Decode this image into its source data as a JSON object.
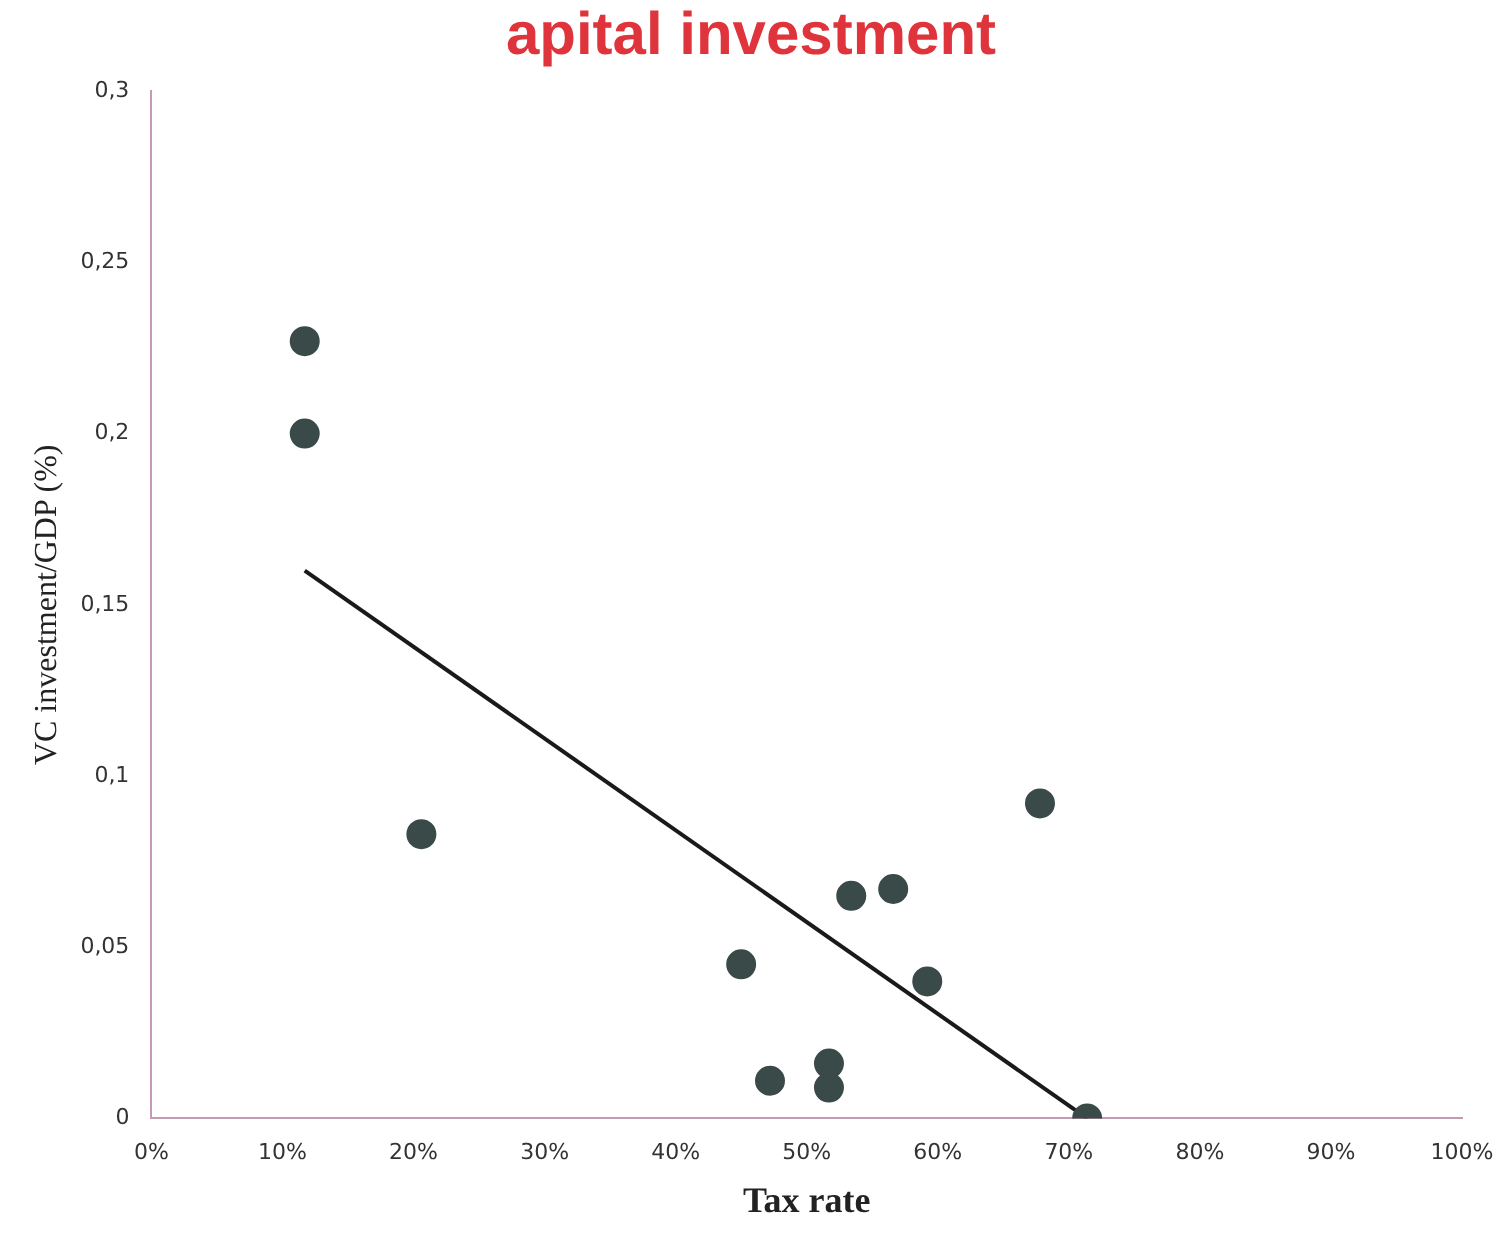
{
  "chart_data": {
    "type": "scatter",
    "title": "apital investment",
    "xlabel": "Tax rate",
    "ylabel": "VC investment/GDP (%)",
    "xlim": [
      0,
      100
    ],
    "xticks": [
      {
        "value": 0,
        "label": "0%"
      },
      {
        "value": 10,
        "label": "10%"
      },
      {
        "value": 20,
        "label": "20%"
      },
      {
        "value": 30,
        "label": "30%"
      },
      {
        "value": 40,
        "label": "40%"
      },
      {
        "value": 50,
        "label": "50%"
      },
      {
        "value": 60,
        "label": "60%"
      },
      {
        "value": 70,
        "label": "70%"
      },
      {
        "value": 80,
        "label": "80%"
      },
      {
        "value": 90,
        "label": "90%"
      },
      {
        "value": 100,
        "label": "100%"
      }
    ],
    "ylim": [
      0,
      0.3
    ],
    "yticks": [
      0,
      {
        "value": 0.05,
        "label": "0,05"
      },
      {
        "value": 0.1,
        "label": "0,1"
      },
      {
        "value": 0.15,
        "label": "0,15"
      },
      {
        "value": 0.2,
        "label": "0,2"
      },
      {
        "value": 0.25,
        "label": "0,25"
      },
      {
        "value": 0.3,
        "label": "0,3"
      }
    ],
    "grid": false,
    "legend": false,
    "marker": "circle",
    "series": [
      {
        "type": "scatter",
        "color": "#3a4a48",
        "x": [
          11.7,
          11.7,
          20.6,
          45,
          47.2,
          51.7,
          51.7,
          53.4,
          56.6,
          59.2,
          67.8,
          71.4
        ],
        "values": [
          0.227,
          0.2,
          0.083,
          0.045,
          0.011,
          0.016,
          0.009,
          0.065,
          0.067,
          0.04,
          0.092,
          0
        ]
      },
      {
        "type": "line",
        "color": "#1a1a1a",
        "marker": "none",
        "x": [
          11.7,
          71.4
        ],
        "values": [
          0.16,
          0
        ]
      }
    ]
  }
}
